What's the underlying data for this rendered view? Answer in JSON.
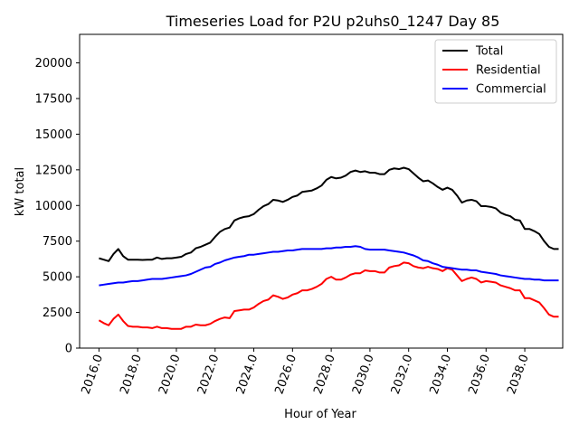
{
  "chart_data": {
    "type": "line",
    "title": "Timeseries Load for P2U p2uhs0_1247  Day 85",
    "xlabel": "Hour of Year",
    "ylabel": "kW total",
    "xlim": [
      2015.0,
      2039.96
    ],
    "ylim": [
      0,
      22000
    ],
    "xticks": [
      2016,
      2018,
      2020,
      2022,
      2024,
      2026,
      2028,
      2030,
      2032,
      2034,
      2036,
      2038
    ],
    "xtick_labels": [
      "2016.0",
      "2018.0",
      "2020.0",
      "2022.0",
      "2024.0",
      "2026.0",
      "2028.0",
      "2030.0",
      "2032.0",
      "2034.0",
      "2036.0",
      "2038.0"
    ],
    "yticks": [
      0,
      2500,
      5000,
      7500,
      10000,
      12500,
      15000,
      17500,
      20000
    ],
    "ytick_labels": [
      "0",
      "2500",
      "5000",
      "7500",
      "10000",
      "12500",
      "15000",
      "17500",
      "20000"
    ],
    "legend_position": "top-right",
    "x": [
      2016.0,
      2016.25,
      2016.5,
      2016.75,
      2017.0,
      2017.25,
      2017.5,
      2017.75,
      2018.0,
      2018.25,
      2018.5,
      2018.75,
      2019.0,
      2019.25,
      2019.5,
      2019.75,
      2020.0,
      2020.25,
      2020.5,
      2020.75,
      2021.0,
      2021.25,
      2021.5,
      2021.75,
      2022.0,
      2022.25,
      2022.5,
      2022.75,
      2023.0,
      2023.25,
      2023.5,
      2023.75,
      2024.0,
      2024.25,
      2024.5,
      2024.75,
      2025.0,
      2025.25,
      2025.5,
      2025.75,
      2026.0,
      2026.25,
      2026.5,
      2026.75,
      2027.0,
      2027.25,
      2027.5,
      2027.75,
      2028.0,
      2028.25,
      2028.5,
      2028.75,
      2029.0,
      2029.25,
      2029.5,
      2029.75,
      2030.0,
      2030.25,
      2030.5,
      2030.75,
      2031.0,
      2031.25,
      2031.5,
      2031.75,
      2032.0,
      2032.25,
      2032.5,
      2032.75,
      2033.0,
      2033.25,
      2033.5,
      2033.75,
      2034.0,
      2034.25,
      2034.5,
      2034.75,
      2035.0,
      2035.25,
      2035.5,
      2035.75,
      2036.0,
      2036.25,
      2036.5,
      2036.75,
      2037.0,
      2037.25,
      2037.5,
      2037.75,
      2038.0,
      2038.25,
      2038.5,
      2038.75,
      2039.0,
      2039.25,
      2039.5,
      2039.75
    ],
    "series": [
      {
        "name": "Total",
        "color": "#000000",
        "values": [
          6300,
          6200,
          6100,
          6600,
          6950,
          6450,
          6200,
          6200,
          6200,
          6180,
          6200,
          6200,
          6350,
          6250,
          6300,
          6300,
          6350,
          6400,
          6600,
          6700,
          7000,
          7100,
          7250,
          7400,
          7800,
          8150,
          8350,
          8450,
          8950,
          9100,
          9200,
          9250,
          9400,
          9700,
          9950,
          10100,
          10400,
          10350,
          10250,
          10400,
          10600,
          10700,
          10950,
          11000,
          11050,
          11200,
          11400,
          11800,
          12000,
          11900,
          11950,
          12100,
          12350,
          12450,
          12350,
          12400,
          12300,
          12300,
          12200,
          12200,
          12500,
          12600,
          12550,
          12650,
          12550,
          12250,
          11950,
          11700,
          11750,
          11550,
          11300,
          11100,
          11250,
          11100,
          10700,
          10200,
          10350,
          10400,
          10300,
          9950,
          9950,
          9900,
          9800,
          9500,
          9350,
          9250,
          9000,
          8950,
          8350,
          8350,
          8200,
          8000,
          7500,
          7100,
          6950,
          6950
        ]
      },
      {
        "name": "Residential",
        "color": "#ff0000",
        "values": [
          1950,
          1750,
          1600,
          2050,
          2350,
          1900,
          1550,
          1500,
          1500,
          1450,
          1450,
          1400,
          1500,
          1400,
          1400,
          1350,
          1350,
          1350,
          1500,
          1500,
          1650,
          1600,
          1600,
          1700,
          1900,
          2050,
          2150,
          2100,
          2600,
          2650,
          2700,
          2700,
          2850,
          3100,
          3300,
          3400,
          3700,
          3600,
          3450,
          3550,
          3750,
          3850,
          4050,
          4050,
          4150,
          4300,
          4500,
          4850,
          5000,
          4800,
          4800,
          4950,
          5150,
          5250,
          5250,
          5450,
          5400,
          5400,
          5300,
          5300,
          5650,
          5750,
          5800,
          6000,
          5950,
          5750,
          5650,
          5600,
          5700,
          5600,
          5550,
          5400,
          5600,
          5500,
          5100,
          4700,
          4850,
          4950,
          4850,
          4600,
          4700,
          4650,
          4600,
          4400,
          4300,
          4200,
          4050,
          4050,
          3500,
          3500,
          3350,
          3200,
          2800,
          2350,
          2200,
          2200
        ]
      },
      {
        "name": "Commercial",
        "color": "#0000ff",
        "values": [
          4400,
          4450,
          4500,
          4550,
          4600,
          4600,
          4650,
          4700,
          4700,
          4750,
          4800,
          4850,
          4850,
          4850,
          4900,
          4950,
          5000,
          5050,
          5100,
          5200,
          5350,
          5500,
          5650,
          5700,
          5900,
          6000,
          6150,
          6250,
          6350,
          6400,
          6450,
          6550,
          6550,
          6600,
          6650,
          6700,
          6750,
          6750,
          6800,
          6850,
          6850,
          6900,
          6950,
          6950,
          6950,
          6950,
          6950,
          7000,
          7000,
          7050,
          7050,
          7100,
          7100,
          7150,
          7100,
          6950,
          6900,
          6900,
          6900,
          6900,
          6850,
          6800,
          6750,
          6700,
          6600,
          6500,
          6350,
          6150,
          6100,
          5950,
          5850,
          5700,
          5650,
          5600,
          5550,
          5500,
          5500,
          5450,
          5450,
          5350,
          5300,
          5250,
          5200,
          5100,
          5050,
          5000,
          4950,
          4900,
          4850,
          4850,
          4800,
          4800,
          4750,
          4750,
          4750,
          4750
        ]
      }
    ]
  }
}
